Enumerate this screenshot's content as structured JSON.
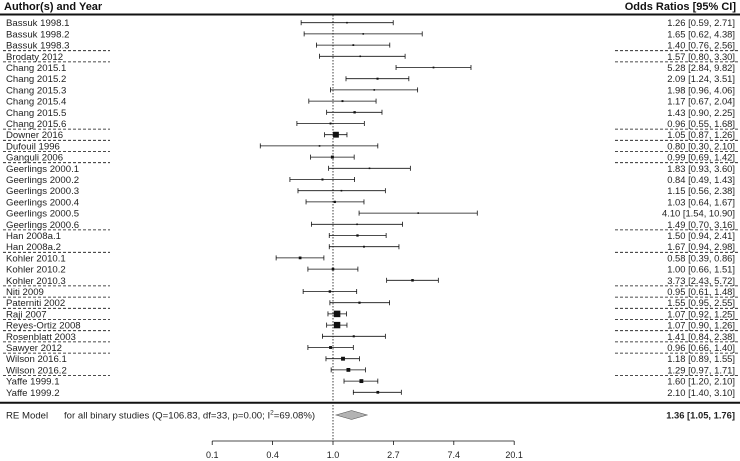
{
  "chart_data": {
    "type": "forest",
    "header_left": "Author(s) and Year",
    "header_right": "Odds Ratios [95% CI]",
    "scale": "log",
    "reference_value": 1.0,
    "x_ticks": [
      {
        "log": -2,
        "label": "0.1"
      },
      {
        "log": -1,
        "label": "0.4"
      },
      {
        "log": 0,
        "label": "1.0"
      },
      {
        "log": 1,
        "label": "2.7"
      },
      {
        "log": 2,
        "label": "7.4"
      },
      {
        "log": 3,
        "label": "20.1"
      }
    ],
    "studies": [
      {
        "name": "Bassuk 1998.1",
        "or": 1.26,
        "lo": 0.59,
        "hi": 2.71,
        "text": "1.26 [0.59,  2.71]"
      },
      {
        "name": "Bassuk 1998.2",
        "or": 1.65,
        "lo": 0.62,
        "hi": 4.38,
        "text": "1.65 [0.62,  4.38]"
      },
      {
        "name": "Bassuk 1998.3",
        "or": 1.4,
        "lo": 0.76,
        "hi": 2.56,
        "text": "1.40 [0.76,  2.56]"
      },
      {
        "name": "Brodaty 2012",
        "or": 1.57,
        "lo": 0.8,
        "hi": 3.3,
        "text": "1.57 [0.80,  3.30]"
      },
      {
        "name": "Chang 2015.1",
        "or": 5.28,
        "lo": 2.84,
        "hi": 9.82,
        "text": "5.28 [2.84,  9.82]"
      },
      {
        "name": "Chang 2015.2",
        "or": 2.09,
        "lo": 1.24,
        "hi": 3.51,
        "text": "2.09 [1.24,  3.51]"
      },
      {
        "name": "Chang 2015.3",
        "or": 1.98,
        "lo": 0.96,
        "hi": 4.06,
        "text": "1.98 [0.96,  4.06]"
      },
      {
        "name": "Chang 2015.4",
        "or": 1.17,
        "lo": 0.67,
        "hi": 2.04,
        "text": "1.17 [0.67,  2.04]"
      },
      {
        "name": "Chang 2015.5",
        "or": 1.43,
        "lo": 0.9,
        "hi": 2.25,
        "text": "1.43 [0.90,  2.25]"
      },
      {
        "name": "Chang 2015.6",
        "or": 0.96,
        "lo": 0.55,
        "hi": 1.68,
        "text": "0.96 [0.55,  1.68]"
      },
      {
        "name": "Downer 2016",
        "or": 1.05,
        "lo": 0.87,
        "hi": 1.26,
        "text": "1.05 [0.87,  1.26]"
      },
      {
        "name": "Dufouil 1996",
        "or": 0.8,
        "lo": 0.3,
        "hi": 2.1,
        "text": "0.80 [0.30,  2.10]"
      },
      {
        "name": "Ganguli 2006",
        "or": 0.99,
        "lo": 0.69,
        "hi": 1.42,
        "text": "0.99 [0.69,  1.42]"
      },
      {
        "name": "Geerlings 2000.1",
        "or": 1.83,
        "lo": 0.93,
        "hi": 3.6,
        "text": "1.83 [0.93,  3.60]"
      },
      {
        "name": "Geerlings 2000.2",
        "or": 0.84,
        "lo": 0.49,
        "hi": 1.43,
        "text": "0.84 [0.49,  1.43]"
      },
      {
        "name": "Geerlings 2000.3",
        "or": 1.15,
        "lo": 0.56,
        "hi": 2.38,
        "text": "1.15 [0.56,  2.38]"
      },
      {
        "name": "Geerlings 2000.4",
        "or": 1.03,
        "lo": 0.64,
        "hi": 1.67,
        "text": "1.03 [0.64,  1.67]"
      },
      {
        "name": "Geerlings 2000.5",
        "or": 4.1,
        "lo": 1.54,
        "hi": 10.9,
        "text": "4.10 [1.54,  10.90]"
      },
      {
        "name": "Geerlings 2000.6",
        "or": 1.49,
        "lo": 0.7,
        "hi": 3.16,
        "text": "1.49 [0.70,  3.16]"
      },
      {
        "name": "Han 2008a.1",
        "or": 1.5,
        "lo": 0.94,
        "hi": 2.41,
        "text": "1.50 [0.94,  2.41]"
      },
      {
        "name": "Han 2008a.2",
        "or": 1.67,
        "lo": 0.94,
        "hi": 2.98,
        "text": "1.67 [0.94,  2.98]"
      },
      {
        "name": "Kohler 2010.1",
        "or": 0.58,
        "lo": 0.39,
        "hi": 0.86,
        "text": "0.58 [0.39,  0.86]"
      },
      {
        "name": "Kohler 2010.2",
        "or": 1.0,
        "lo": 0.66,
        "hi": 1.51,
        "text": "1.00 [0.66,  1.51]"
      },
      {
        "name": "Kohler 2010.3",
        "or": 3.73,
        "lo": 2.43,
        "hi": 5.72,
        "text": "3.73 [2.43,  5.72]"
      },
      {
        "name": "Niti 2009",
        "or": 0.95,
        "lo": 0.61,
        "hi": 1.48,
        "text": "0.95 [0.61,  1.48]"
      },
      {
        "name": "Paterniti 2002",
        "or": 1.55,
        "lo": 0.95,
        "hi": 2.55,
        "text": "1.55 [0.95,  2.55]"
      },
      {
        "name": "Raji 2007",
        "or": 1.07,
        "lo": 0.92,
        "hi": 1.25,
        "text": "1.07 [0.92,  1.25]"
      },
      {
        "name": "Reyes-Ortiz 2008",
        "or": 1.07,
        "lo": 0.9,
        "hi": 1.26,
        "text": "1.07 [0.90,  1.26]"
      },
      {
        "name": "Rosenblatt 2003",
        "or": 1.41,
        "lo": 0.84,
        "hi": 2.38,
        "text": "1.41 [0.84,  2.38]"
      },
      {
        "name": "Sawyer 2012",
        "or": 0.96,
        "lo": 0.66,
        "hi": 1.4,
        "text": "0.96 [0.66,  1.40]"
      },
      {
        "name": "Wilson 2016.1",
        "or": 1.18,
        "lo": 0.89,
        "hi": 1.55,
        "text": "1.18 [0.89,  1.55]"
      },
      {
        "name": "Wilson 2016.2",
        "or": 1.29,
        "lo": 0.97,
        "hi": 1.71,
        "text": "1.29 [0.97,  1.71]"
      },
      {
        "name": "Yaffe 1999.1",
        "or": 1.6,
        "lo": 1.2,
        "hi": 2.1,
        "text": "1.60 [1.20,  2.10]"
      },
      {
        "name": "Yaffe 1999.2",
        "or": 2.1,
        "lo": 1.4,
        "hi": 3.1,
        "text": "2.10 [1.40,  3.10]"
      }
    ],
    "summary": {
      "label": "RE Model",
      "description": "for all binary studies (Q=106.83, df=33, p=0.00; I",
      "sup": "2",
      "description_end": "=69.08%)",
      "or": 1.36,
      "lo": 1.05,
      "hi": 1.76,
      "text": "1.36 [1.05,  1.76]"
    },
    "colors": {
      "ink": "#111111",
      "diamond": "#b3b3b3"
    }
  }
}
